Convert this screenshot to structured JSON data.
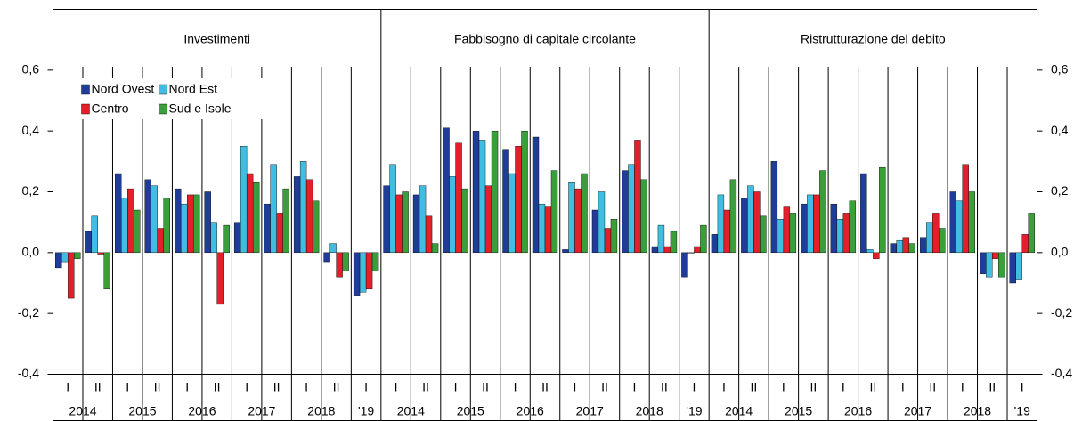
{
  "chart_data": [
    {
      "type": "bar",
      "title": "Investimenti",
      "legend": "upper left",
      "categories": [
        "I",
        "II",
        "I",
        "II",
        "I",
        "II",
        "I",
        "II",
        "I",
        "II",
        "I"
      ],
      "years": [
        "2014",
        "2015",
        "2016",
        "2017",
        "2018",
        "'19"
      ],
      "ylim": [
        -0.4,
        0.8
      ],
      "yticks": [
        {
          "value": -0.4,
          "label": "-0,4"
        },
        {
          "value": -0.2,
          "label": "-0,2"
        },
        {
          "value": 0,
          "label": "0,0"
        },
        {
          "value": 0.2,
          "label": "0,2"
        },
        {
          "value": 0.4,
          "label": "0,4"
        },
        {
          "value": 0.6,
          "label": "0,6"
        }
      ],
      "series": [
        {
          "name": "Nord Ovest",
          "color": "#1f3c98",
          "values": [
            -0.05,
            0.07,
            0.26,
            0.24,
            0.21,
            0.2,
            0.1,
            0.16,
            0.25,
            -0.03,
            -0.14
          ]
        },
        {
          "name": "Nord Est",
          "color": "#40bde0",
          "values": [
            -0.03,
            0.12,
            0.18,
            0.22,
            0.16,
            0.1,
            0.35,
            0.29,
            0.3,
            0.03,
            -0.13
          ]
        },
        {
          "name": "Centro",
          "color": "#e3202a",
          "values": [
            -0.15,
            -0.005,
            0.21,
            0.08,
            0.19,
            -0.17,
            0.26,
            0.13,
            0.24,
            -0.08,
            -0.12
          ]
        },
        {
          "name": "Sud e Isole",
          "color": "#3a9e3a",
          "values": [
            -0.02,
            -0.12,
            0.14,
            0.18,
            0.19,
            0.09,
            0.23,
            0.21,
            0.17,
            -0.06,
            -0.06
          ]
        }
      ]
    },
    {
      "type": "bar",
      "title": "Fabbisogno di capitale circolante",
      "categories": [
        "I",
        "II",
        "I",
        "II",
        "I",
        "II",
        "I",
        "II",
        "I",
        "II",
        "I"
      ],
      "years": [
        "2014",
        "2015",
        "2016",
        "2017",
        "2018",
        "'19"
      ],
      "ylim": [
        -0.4,
        0.8
      ],
      "yticks": [
        {
          "value": -0.4,
          "label": "-0,4"
        },
        {
          "value": -0.2,
          "label": "-0,2"
        },
        {
          "value": 0,
          "label": "0,0"
        },
        {
          "value": 0.2,
          "label": "0,2"
        },
        {
          "value": 0.4,
          "label": "0,4"
        },
        {
          "value": 0.6,
          "label": "0,6"
        }
      ],
      "series": [
        {
          "name": "Nord Ovest",
          "color": "#1f3c98",
          "values": [
            0.22,
            0.19,
            0.41,
            0.4,
            0.34,
            0.38,
            0.01,
            0.14,
            0.27,
            0.02,
            -0.08
          ]
        },
        {
          "name": "Nord Est",
          "color": "#40bde0",
          "values": [
            0.29,
            0.22,
            0.25,
            0.37,
            0.26,
            0.16,
            0.23,
            0.2,
            0.29,
            0.09,
            0
          ]
        },
        {
          "name": "Centro",
          "color": "#e3202a",
          "values": [
            0.19,
            0.12,
            0.36,
            0.22,
            0.35,
            0.15,
            0.21,
            0.08,
            0.37,
            0.02,
            0.02
          ]
        },
        {
          "name": "Sud e Isole",
          "color": "#3a9e3a",
          "values": [
            0.2,
            0.03,
            0.21,
            0.4,
            0.4,
            0.27,
            0.26,
            0.11,
            0.24,
            0.07,
            0.09
          ]
        }
      ]
    },
    {
      "type": "bar",
      "title": "Ristrutturazione  del debito",
      "categories": [
        "I",
        "II",
        "I",
        "II",
        "I",
        "II",
        "I",
        "II",
        "I",
        "II",
        "I"
      ],
      "years": [
        "2014",
        "2015",
        "2016",
        "2017",
        "2018",
        "'19"
      ],
      "ylim": [
        -0.4,
        0.8
      ],
      "yticks": [
        {
          "value": -0.4,
          "label": "-0,4"
        },
        {
          "value": -0.2,
          "label": "-0,2"
        },
        {
          "value": 0,
          "label": "0,0"
        },
        {
          "value": 0.2,
          "label": "0,2"
        },
        {
          "value": 0.4,
          "label": "0,4"
        },
        {
          "value": 0.6,
          "label": "0,6"
        }
      ],
      "series": [
        {
          "name": "Nord Ovest",
          "color": "#1f3c98",
          "values": [
            0.06,
            0.18,
            0.3,
            0.16,
            0.16,
            0.26,
            0.03,
            0.05,
            0.2,
            -0.07,
            -0.1
          ]
        },
        {
          "name": "Nord Est",
          "color": "#40bde0",
          "values": [
            0.19,
            0.22,
            0.11,
            0.19,
            0.11,
            0.01,
            0.04,
            0.1,
            0.17,
            -0.08,
            -0.09
          ]
        },
        {
          "name": "Centro",
          "color": "#e3202a",
          "values": [
            0.14,
            0.2,
            0.15,
            0.19,
            0.13,
            -0.02,
            0.05,
            0.13,
            0.29,
            -0.02,
            0.06
          ]
        },
        {
          "name": "Sud e Isole",
          "color": "#3a9e3a",
          "values": [
            0.24,
            0.12,
            0.13,
            0.27,
            0.17,
            0.28,
            0.03,
            0.08,
            0.2,
            -0.08,
            0.13
          ]
        }
      ]
    }
  ]
}
